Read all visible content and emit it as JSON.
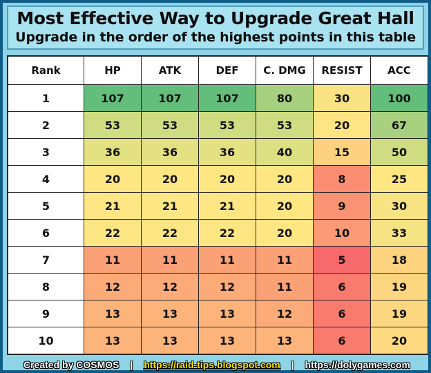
{
  "header": {
    "title": "Most Effective Way to Upgrade Great Hall",
    "subtitle": "Upgrade in the order of the highest points in this table"
  },
  "table": {
    "columns": [
      "Rank",
      "HP",
      "ATK",
      "DEF",
      "C. DMG",
      "RESIST",
      "ACC"
    ],
    "rows": [
      [
        "1",
        "107",
        "107",
        "107",
        "80",
        "30",
        "100"
      ],
      [
        "2",
        "53",
        "53",
        "53",
        "53",
        "20",
        "67"
      ],
      [
        "3",
        "36",
        "36",
        "36",
        "40",
        "15",
        "50"
      ],
      [
        "4",
        "20",
        "20",
        "20",
        "20",
        "8",
        "25"
      ],
      [
        "5",
        "21",
        "21",
        "21",
        "20",
        "9",
        "30"
      ],
      [
        "6",
        "22",
        "22",
        "22",
        "20",
        "10",
        "33"
      ],
      [
        "7",
        "11",
        "11",
        "11",
        "11",
        "5",
        "18"
      ],
      [
        "8",
        "12",
        "12",
        "12",
        "11",
        "6",
        "19"
      ],
      [
        "9",
        "13",
        "13",
        "13",
        "12",
        "6",
        "19"
      ],
      [
        "10",
        "13",
        "13",
        "13",
        "13",
        "6",
        "20"
      ]
    ],
    "cell_colors": [
      [
        "#63be7b",
        "#63be7b",
        "#63be7b",
        "#a8d17f",
        "#f8e383",
        "#63be7b"
      ],
      [
        "#cfdc81",
        "#cfdc81",
        "#cfdc81",
        "#cfdc81",
        "#fee482",
        "#a8d17f"
      ],
      [
        "#e4e182",
        "#e4e182",
        "#e4e182",
        "#dcdf82",
        "#fdd17f",
        "#cfdc81"
      ],
      [
        "#fee683",
        "#fee683",
        "#fee683",
        "#fee683",
        "#fa8d72",
        "#fee683"
      ],
      [
        "#fde683",
        "#fde683",
        "#fde683",
        "#fee683",
        "#fa9373",
        "#f8e383"
      ],
      [
        "#fce583",
        "#fce583",
        "#fce583",
        "#fee683",
        "#fb9a75",
        "#f5e383"
      ],
      [
        "#fba176",
        "#fba176",
        "#fba176",
        "#fba176",
        "#f8696b",
        "#fdd380"
      ],
      [
        "#fcab78",
        "#fcab78",
        "#fcab78",
        "#fba176",
        "#f87b6e",
        "#fdd780"
      ],
      [
        "#fcb47a",
        "#fcb47a",
        "#fcb47a",
        "#fcab78",
        "#f87b6e",
        "#fdd780"
      ],
      [
        "#fcb47a",
        "#fcb47a",
        "#fcb47a",
        "#fcb47a",
        "#f87b6e",
        "#fed980"
      ]
    ]
  },
  "footer": {
    "credit": "Created by COSMOS",
    "separator": "|",
    "link1": "https://raid-tips.blogspot.com",
    "link2": "https://dolygames.com"
  }
}
